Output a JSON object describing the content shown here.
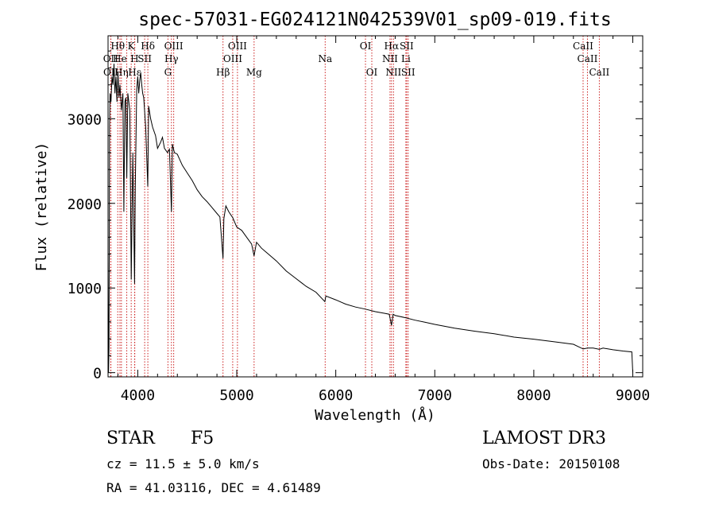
{
  "chart_data": {
    "type": "line",
    "title": "spec-57031-EG024121N042539V01_sp09-019.fits",
    "xlabel": "Wavelength (Å)",
    "ylabel": "Flux (relative)",
    "xlim": [
      3700,
      9100
    ],
    "ylim": [
      -50,
      3980
    ],
    "x_ticks": [
      4000,
      5000,
      6000,
      7000,
      8000,
      9000
    ],
    "y_ticks": [
      0,
      1000,
      2000,
      3000
    ],
    "series": [
      {
        "name": "flux",
        "x": [
          3700,
          3705,
          3710,
          3715,
          3720,
          3730,
          3740,
          3750,
          3760,
          3770,
          3780,
          3790,
          3800,
          3810,
          3820,
          3835,
          3850,
          3860,
          3870,
          3880,
          3889,
          3900,
          3920,
          3934,
          3950,
          3968,
          3975,
          3990,
          4000,
          4010,
          4020,
          4030,
          4040,
          4050,
          4060,
          4080,
          4101,
          4110,
          4130,
          4150,
          4180,
          4200,
          4230,
          4250,
          4270,
          4300,
          4320,
          4340,
          4350,
          4370,
          4400,
          4450,
          4500,
          4550,
          4600,
          4650,
          4700,
          4750,
          4800,
          4830,
          4861,
          4870,
          4890,
          4920,
          4960,
          5000,
          5050,
          5100,
          5150,
          5175,
          5200,
          5250,
          5300,
          5400,
          5500,
          5600,
          5700,
          5800,
          5890,
          5900,
          6000,
          6100,
          6200,
          6300,
          6400,
          6500,
          6540,
          6563,
          6580,
          6600,
          6700,
          6800,
          6900,
          7000,
          7200,
          7400,
          7600,
          7800,
          8000,
          8200,
          8400,
          8498,
          8542,
          8600,
          8662,
          8700,
          8800,
          8900,
          8990,
          9000
        ],
        "y": [
          1350,
          0,
          300,
          2900,
          3300,
          3200,
          3500,
          3400,
          3650,
          3300,
          3500,
          3200,
          3550,
          3250,
          3400,
          3100,
          3300,
          1900,
          3200,
          3250,
          2300,
          3300,
          3100,
          1100,
          2600,
          1050,
          2200,
          3350,
          3500,
          3300,
          3450,
          3550,
          3400,
          3300,
          3250,
          2900,
          2200,
          3150,
          3000,
          2900,
          2800,
          2650,
          2720,
          2780,
          2650,
          2600,
          2640,
          1900,
          2700,
          2600,
          2580,
          2450,
          2360,
          2270,
          2160,
          2080,
          2020,
          1950,
          1880,
          1840,
          1350,
          1820,
          1970,
          1900,
          1830,
          1720,
          1680,
          1600,
          1520,
          1380,
          1540,
          1470,
          1420,
          1320,
          1200,
          1110,
          1020,
          950,
          840,
          905,
          860,
          810,
          775,
          750,
          720,
          700,
          690,
          560,
          690,
          675,
          650,
          620,
          595,
          570,
          525,
          490,
          460,
          420,
          395,
          365,
          335,
          280,
          290,
          290,
          275,
          290,
          270,
          255,
          245,
          0
        ]
      }
    ],
    "lines_row1": [
      {
        "label": "Hθ",
        "x": 3798
      },
      {
        "label": "K",
        "x": 3934
      },
      {
        "label": "Hδ",
        "x": 4102
      },
      {
        "label": "OIII",
        "x": 4363
      },
      {
        "label": "OIII",
        "x": 5007
      },
      {
        "label": "OI",
        "x": 6300
      },
      {
        "label": "Hα",
        "x": 6563
      },
      {
        "label": "SII",
        "x": 6716
      },
      {
        "label": "CaII",
        "x": 8498
      }
    ],
    "lines_row2": [
      {
        "label": "OII",
        "x": 3727
      },
      {
        "label": "He",
        "x": 3820
      },
      {
        "label": "H",
        "x": 3968
      },
      {
        "label": "SII",
        "x": 4070
      },
      {
        "label": "Hγ",
        "x": 4340
      },
      {
        "label": "OIII",
        "x": 4959
      },
      {
        "label": "Na",
        "x": 5893
      },
      {
        "label": "NII",
        "x": 6548
      },
      {
        "label": "Li",
        "x": 6708
      },
      {
        "label": "CaII",
        "x": 8542
      }
    ],
    "lines_row3": [
      {
        "label": "OII",
        "x": 3729
      },
      {
        "label": "Hη",
        "x": 3835
      },
      {
        "label": "Hε",
        "x": 3970
      },
      {
        "label": "G",
        "x": 4305
      },
      {
        "label": "Hβ",
        "x": 4861
      },
      {
        "label": "Mg",
        "x": 5175
      },
      {
        "label": "OI",
        "x": 6364
      },
      {
        "label": "NII",
        "x": 6583
      },
      {
        "label": "SII",
        "x": 6731
      },
      {
        "label": "CaII",
        "x": 8662
      }
    ],
    "marker_positions": [
      3727,
      3729,
      3798,
      3820,
      3835,
      3889,
      3934,
      3968,
      3970,
      4070,
      4102,
      4305,
      4340,
      4363,
      4861,
      4959,
      5007,
      5175,
      5893,
      6300,
      6364,
      6548,
      6563,
      6583,
      6708,
      6716,
      6731,
      8498,
      8542,
      8662
    ]
  },
  "info": {
    "class": "STAR",
    "subclass": "F5",
    "survey": "LAMOST DR3",
    "cz": "cz = 11.5 ± 5.0 km/s",
    "obs_date": "Obs-Date: 20150108",
    "radec": "RA =  41.03116, DEC =   4.61489"
  },
  "colors": {
    "line_marker": "#cc2222",
    "spectrum": "#000000",
    "axes": "#000000"
  }
}
